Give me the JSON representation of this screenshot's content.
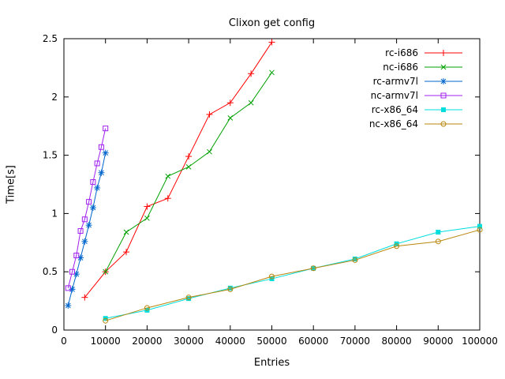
{
  "chart_data": {
    "type": "line",
    "title": "Clixon get config",
    "xlabel": "Entries",
    "ylabel": "Time[s]",
    "xlim": [
      0,
      100000
    ],
    "ylim": [
      0,
      2.5
    ],
    "xticks": [
      0,
      10000,
      20000,
      30000,
      40000,
      50000,
      60000,
      70000,
      80000,
      90000,
      100000
    ],
    "yticks": [
      0,
      0.5,
      1,
      1.5,
      2,
      2.5
    ],
    "grid": false,
    "legend_position": "top-right-inside",
    "series": [
      {
        "name": "rc-i686",
        "color": "#ff0000",
        "marker": "plus",
        "points": [
          [
            5000,
            0.28
          ],
          [
            10000,
            0.5
          ],
          [
            15000,
            0.67
          ],
          [
            20000,
            1.06
          ],
          [
            25000,
            1.13
          ],
          [
            30000,
            1.49
          ],
          [
            35000,
            1.85
          ],
          [
            40000,
            1.95
          ],
          [
            45000,
            2.2
          ],
          [
            50000,
            2.47
          ]
        ]
      },
      {
        "name": "nc-i686",
        "color": "#00a000",
        "marker": "cross",
        "points": [
          [
            10000,
            0.5
          ],
          [
            15000,
            0.84
          ],
          [
            20000,
            0.96
          ],
          [
            25000,
            1.32
          ],
          [
            30000,
            1.4
          ],
          [
            35000,
            1.53
          ],
          [
            40000,
            1.82
          ],
          [
            45000,
            1.95
          ],
          [
            50000,
            2.21
          ]
        ]
      },
      {
        "name": "rc-armv7l",
        "color": "#0066cc",
        "marker": "asterisk",
        "points": [
          [
            1000,
            0.21
          ],
          [
            2000,
            0.35
          ],
          [
            3000,
            0.48
          ],
          [
            4000,
            0.62
          ],
          [
            5000,
            0.76
          ],
          [
            6000,
            0.9
          ],
          [
            7000,
            1.05
          ],
          [
            8000,
            1.22
          ],
          [
            9000,
            1.35
          ],
          [
            10000,
            1.52
          ]
        ]
      },
      {
        "name": "nc-armv7l",
        "color": "#a020f0",
        "marker": "square-open",
        "points": [
          [
            1000,
            0.36
          ],
          [
            2000,
            0.5
          ],
          [
            3000,
            0.64
          ],
          [
            4000,
            0.85
          ],
          [
            5000,
            0.95
          ],
          [
            6000,
            1.1
          ],
          [
            7000,
            1.27
          ],
          [
            8000,
            1.43
          ],
          [
            9000,
            1.57
          ],
          [
            10000,
            1.73
          ]
        ]
      },
      {
        "name": "rc-x86_64",
        "color": "#00dddd",
        "marker": "square-filled",
        "points": [
          [
            10000,
            0.1
          ],
          [
            20000,
            0.17
          ],
          [
            30000,
            0.27
          ],
          [
            40000,
            0.36
          ],
          [
            50000,
            0.44
          ],
          [
            60000,
            0.53
          ],
          [
            70000,
            0.61
          ],
          [
            80000,
            0.74
          ],
          [
            90000,
            0.84
          ],
          [
            100000,
            0.89
          ]
        ]
      },
      {
        "name": "nc-x86_64",
        "color": "#b8860b",
        "marker": "circle-open",
        "points": [
          [
            10000,
            0.08
          ],
          [
            20000,
            0.19
          ],
          [
            30000,
            0.28
          ],
          [
            40000,
            0.35
          ],
          [
            50000,
            0.46
          ],
          [
            60000,
            0.53
          ],
          [
            70000,
            0.6
          ],
          [
            80000,
            0.72
          ],
          [
            90000,
            0.76
          ],
          [
            100000,
            0.86
          ]
        ]
      }
    ]
  }
}
